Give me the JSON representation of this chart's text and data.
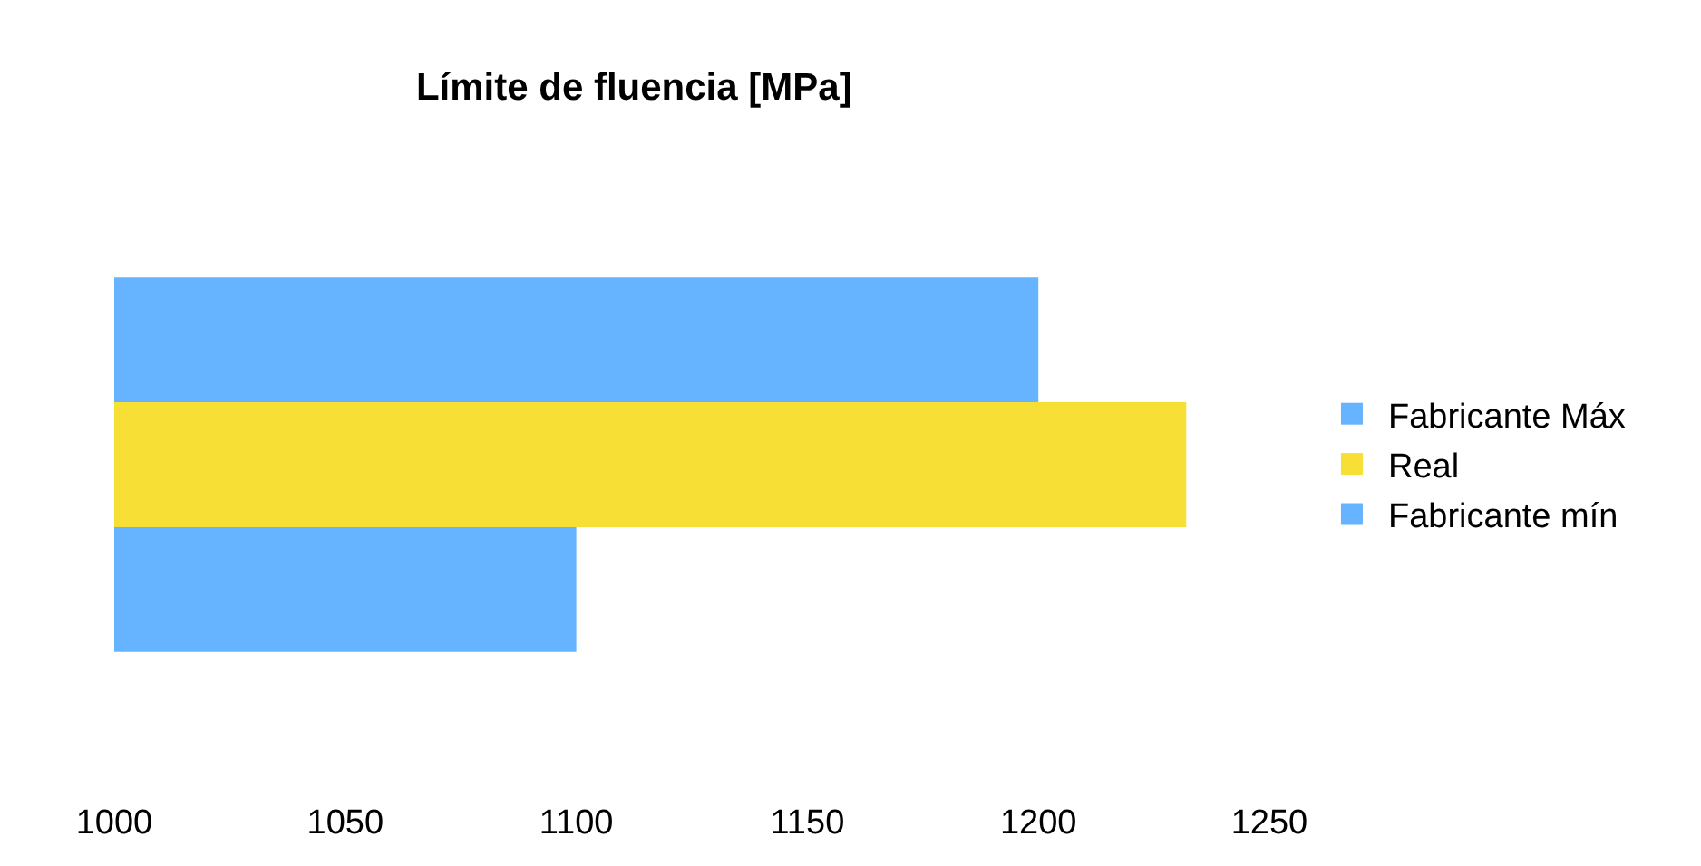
{
  "chart_data": {
    "type": "bar",
    "orientation": "horizontal",
    "title": "Límite de fluencia [MPa]",
    "categories": [
      null
    ],
    "series": [
      {
        "name": "Fabricante Máx",
        "color": "#66b3ff",
        "values": [
          1200
        ]
      },
      {
        "name": "Real",
        "color": "#f8df36",
        "values": [
          1232
        ]
      },
      {
        "name": "Fabricante mín",
        "color": "#66b3ff",
        "values": [
          1100
        ]
      }
    ],
    "xlim": [
      1000,
      1250
    ],
    "xticks": [
      1000,
      1050,
      1100,
      1150,
      1200,
      1250
    ],
    "legend": "right",
    "tick_labels": "x"
  }
}
